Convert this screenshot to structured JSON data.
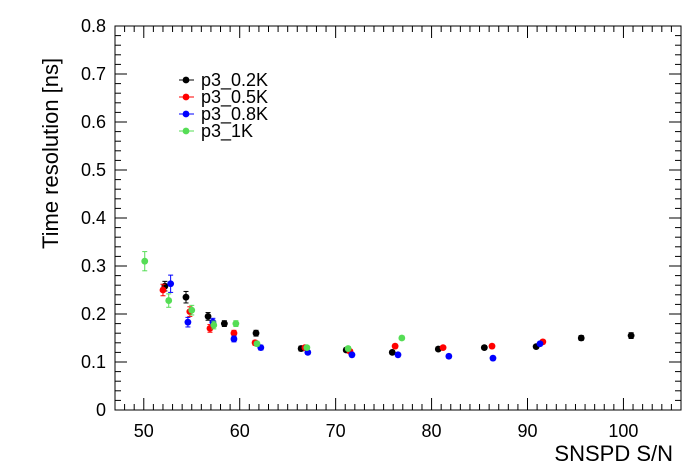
{
  "chart_data": {
    "type": "scatter",
    "title": "",
    "xlabel": "SNSPD S/N",
    "ylabel": "Time resolution [ns]",
    "xlim": [
      47,
      106
    ],
    "ylim": [
      0,
      0.8
    ],
    "xticks": [
      50,
      60,
      70,
      80,
      90,
      100
    ],
    "yticks": [
      0,
      0.1,
      0.2,
      0.3,
      0.4,
      0.5,
      0.6,
      0.7,
      0.8
    ],
    "ytick_labels": [
      "0",
      "0.1",
      "0.2",
      "0.3",
      "0.4",
      "0.5",
      "0.6",
      "0.7",
      "0.8"
    ],
    "xtick_labels": [
      "50",
      "60",
      "70",
      "80",
      "90",
      "100"
    ],
    "legend_position": "top-left",
    "series": [
      {
        "name": "p3_0.2K",
        "color": "#000000",
        "x": [
          52.2,
          54.4,
          56.7,
          58.4,
          61.7,
          66.4,
          71.1,
          75.9,
          80.7,
          85.5,
          90.9,
          95.6,
          100.8
        ],
        "y": [
          0.258,
          0.235,
          0.195,
          0.18,
          0.16,
          0.128,
          0.125,
          0.12,
          0.127,
          0.13,
          0.132,
          0.15,
          0.155
        ],
        "err": [
          0.01,
          0.012,
          0.008,
          0.006,
          0.006,
          0.005,
          0.004,
          0.004,
          0.004,
          0.004,
          0.004,
          0.005,
          0.006
        ]
      },
      {
        "name": "p3_0.5K",
        "color": "#ff0000",
        "x": [
          52.0,
          54.8,
          56.9,
          59.4,
          61.6,
          66.8,
          71.5,
          76.2,
          81.2,
          86.3,
          91.6
        ],
        "y": [
          0.25,
          0.205,
          0.17,
          0.16,
          0.14,
          0.13,
          0.122,
          0.133,
          0.13,
          0.133,
          0.142
        ],
        "err": [
          0.012,
          0.01,
          0.008,
          0.006,
          0.005,
          0.004,
          0.004,
          0.004,
          0.004,
          0.004,
          0.004
        ]
      },
      {
        "name": "p3_0.8K",
        "color": "#0000ff",
        "x": [
          52.8,
          54.6,
          57.2,
          59.4,
          62.2,
          67.1,
          71.7,
          76.5,
          81.8,
          86.4,
          91.3
        ],
        "y": [
          0.263,
          0.183,
          0.183,
          0.148,
          0.13,
          0.12,
          0.115,
          0.115,
          0.112,
          0.108,
          0.138
        ],
        "err": [
          0.018,
          0.01,
          0.008,
          0.006,
          0.005,
          0.004,
          0.004,
          0.004,
          0.004,
          0.004,
          0.004
        ]
      },
      {
        "name": "p3_1K",
        "color": "#55dd55",
        "x": [
          50.1,
          52.6,
          55.0,
          57.3,
          59.6,
          61.8,
          67.0,
          71.3,
          76.9
        ],
        "y": [
          0.31,
          0.228,
          0.208,
          0.177,
          0.18,
          0.138,
          0.13,
          0.128,
          0.15
        ],
        "err": [
          0.02,
          0.014,
          0.01,
          0.008,
          0.006,
          0.005,
          0.004,
          0.004,
          0.004
        ]
      }
    ]
  }
}
